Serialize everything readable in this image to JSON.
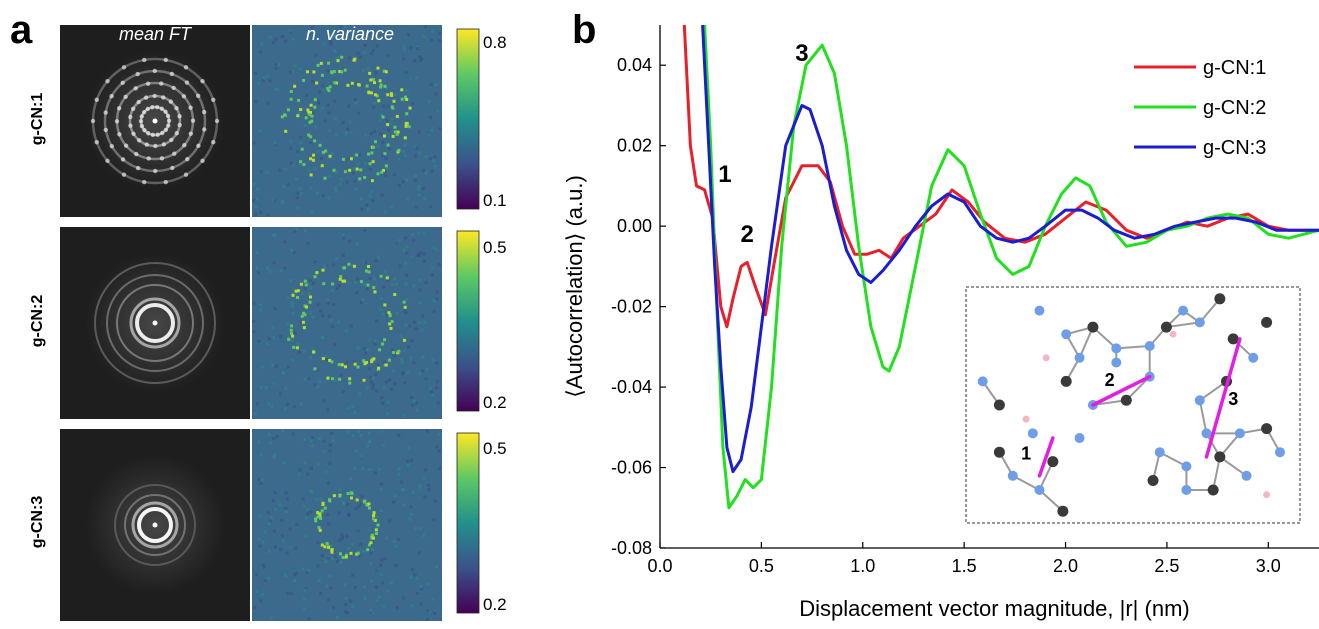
{
  "panel_a": {
    "label": "a",
    "col_titles": [
      "mean FT",
      "n. variance"
    ],
    "rows": [
      {
        "name": "g-CN:1",
        "cbar_max": "0.8",
        "cbar_min": "0.1"
      },
      {
        "name": "g-CN:2",
        "cbar_max": "0.5",
        "cbar_min": "0.2"
      },
      {
        "name": "g-CN:3",
        "cbar_max": "0.5",
        "cbar_min": "0.2"
      }
    ],
    "colors": {
      "ft_bg": "#1e1e1e",
      "var_bg": "#3b6a8c",
      "ring": "#ffffff",
      "var_hot": "#b5de2b"
    }
  },
  "panel_b": {
    "label": "b"
  },
  "chart_data": {
    "type": "line",
    "xlabel": "Displacement vector magnitude, |r| (nm)",
    "ylabel": "⟨Autocorrelation⟩ (a.u.)",
    "xlim": [
      0.0,
      3.25
    ],
    "ylim": [
      -0.08,
      0.05
    ],
    "xticks": [
      "0.0",
      "0.5",
      "1.0",
      "1.5",
      "2.0",
      "2.5",
      "3.0"
    ],
    "yticks": [
      "-0.08",
      "-0.06",
      "-0.04",
      "-0.02",
      "0.00",
      "0.02",
      "0.04"
    ],
    "legend_position": "top-right",
    "annotations": [
      {
        "text": "1",
        "x": 0.32,
        "y": 0.011
      },
      {
        "text": "2",
        "x": 0.43,
        "y": -0.004
      },
      {
        "text": "3",
        "x": 0.7,
        "y": 0.041
      }
    ],
    "inset_labels": [
      "2",
      "3",
      "1"
    ],
    "series": [
      {
        "name": "g-CN:1",
        "color": "#e8202a",
        "points": [
          [
            0.12,
            0.05
          ],
          [
            0.15,
            0.02
          ],
          [
            0.18,
            0.01
          ],
          [
            0.22,
            0.009
          ],
          [
            0.26,
            0.002
          ],
          [
            0.3,
            -0.02
          ],
          [
            0.33,
            -0.025
          ],
          [
            0.36,
            -0.018
          ],
          [
            0.4,
            -0.01
          ],
          [
            0.43,
            -0.009
          ],
          [
            0.47,
            -0.015
          ],
          [
            0.52,
            -0.022
          ],
          [
            0.56,
            -0.01
          ],
          [
            0.62,
            0.007
          ],
          [
            0.7,
            0.015
          ],
          [
            0.78,
            0.015
          ],
          [
            0.84,
            0.011
          ],
          [
            0.9,
            0.0
          ],
          [
            0.96,
            -0.007
          ],
          [
            1.02,
            -0.007
          ],
          [
            1.08,
            -0.006
          ],
          [
            1.14,
            -0.008
          ],
          [
            1.2,
            -0.003
          ],
          [
            1.28,
            0.0
          ],
          [
            1.36,
            0.003
          ],
          [
            1.44,
            0.009
          ],
          [
            1.52,
            0.006
          ],
          [
            1.6,
            0.001
          ],
          [
            1.7,
            -0.003
          ],
          [
            1.8,
            -0.004
          ],
          [
            1.9,
            -0.002
          ],
          [
            2.0,
            0.002
          ],
          [
            2.1,
            0.006
          ],
          [
            2.2,
            0.004
          ],
          [
            2.3,
            -0.001
          ],
          [
            2.4,
            -0.003
          ],
          [
            2.5,
            -0.001
          ],
          [
            2.6,
            0.001
          ],
          [
            2.7,
            0.0
          ],
          [
            2.8,
            0.002
          ],
          [
            2.9,
            0.003
          ],
          [
            3.0,
            0.0
          ],
          [
            3.1,
            -0.001
          ],
          [
            3.25,
            -0.001
          ]
        ]
      },
      {
        "name": "g-CN:2",
        "color": "#22e01e",
        "points": [
          [
            0.22,
            0.05
          ],
          [
            0.25,
            0.02
          ],
          [
            0.28,
            -0.02
          ],
          [
            0.31,
            -0.055
          ],
          [
            0.34,
            -0.07
          ],
          [
            0.38,
            -0.067
          ],
          [
            0.42,
            -0.063
          ],
          [
            0.46,
            -0.065
          ],
          [
            0.5,
            -0.063
          ],
          [
            0.55,
            -0.04
          ],
          [
            0.6,
            -0.005
          ],
          [
            0.66,
            0.025
          ],
          [
            0.72,
            0.04
          ],
          [
            0.8,
            0.045
          ],
          [
            0.86,
            0.038
          ],
          [
            0.92,
            0.02
          ],
          [
            0.98,
            -0.005
          ],
          [
            1.04,
            -0.025
          ],
          [
            1.1,
            -0.035
          ],
          [
            1.13,
            -0.036
          ],
          [
            1.18,
            -0.03
          ],
          [
            1.26,
            -0.01
          ],
          [
            1.34,
            0.01
          ],
          [
            1.42,
            0.019
          ],
          [
            1.5,
            0.015
          ],
          [
            1.58,
            0.003
          ],
          [
            1.66,
            -0.008
          ],
          [
            1.74,
            -0.012
          ],
          [
            1.82,
            -0.01
          ],
          [
            1.9,
            0.0
          ],
          [
            1.98,
            0.008
          ],
          [
            2.05,
            0.012
          ],
          [
            2.12,
            0.01
          ],
          [
            2.2,
            0.001
          ],
          [
            2.3,
            -0.005
          ],
          [
            2.4,
            -0.004
          ],
          [
            2.5,
            -0.001
          ],
          [
            2.6,
            0.0
          ],
          [
            2.7,
            0.002
          ],
          [
            2.8,
            0.003
          ],
          [
            2.9,
            0.002
          ],
          [
            3.0,
            -0.002
          ],
          [
            3.1,
            -0.003
          ],
          [
            3.25,
            -0.001
          ]
        ]
      },
      {
        "name": "g-CN:3",
        "color": "#1c1cd0",
        "points": [
          [
            0.21,
            0.05
          ],
          [
            0.24,
            0.02
          ],
          [
            0.27,
            -0.01
          ],
          [
            0.3,
            -0.035
          ],
          [
            0.33,
            -0.055
          ],
          [
            0.36,
            -0.061
          ],
          [
            0.4,
            -0.058
          ],
          [
            0.45,
            -0.045
          ],
          [
            0.5,
            -0.025
          ],
          [
            0.55,
            -0.005
          ],
          [
            0.62,
            0.02
          ],
          [
            0.7,
            0.03
          ],
          [
            0.74,
            0.029
          ],
          [
            0.8,
            0.02
          ],
          [
            0.86,
            0.005
          ],
          [
            0.92,
            -0.006
          ],
          [
            0.98,
            -0.012
          ],
          [
            1.04,
            -0.014
          ],
          [
            1.1,
            -0.011
          ],
          [
            1.18,
            -0.006
          ],
          [
            1.26,
            0.0
          ],
          [
            1.34,
            0.005
          ],
          [
            1.42,
            0.008
          ],
          [
            1.5,
            0.006
          ],
          [
            1.58,
            0.0
          ],
          [
            1.66,
            -0.003
          ],
          [
            1.74,
            -0.004
          ],
          [
            1.82,
            -0.003
          ],
          [
            1.9,
            0.0
          ],
          [
            2.0,
            0.004
          ],
          [
            2.08,
            0.004
          ],
          [
            2.16,
            0.002
          ],
          [
            2.24,
            -0.001
          ],
          [
            2.34,
            -0.003
          ],
          [
            2.44,
            -0.002
          ],
          [
            2.54,
            0.0
          ],
          [
            2.64,
            0.001
          ],
          [
            2.74,
            0.002
          ],
          [
            2.84,
            0.002
          ],
          [
            2.94,
            0.001
          ],
          [
            3.04,
            -0.001
          ],
          [
            3.14,
            -0.001
          ],
          [
            3.25,
            -0.001
          ]
        ]
      }
    ]
  }
}
